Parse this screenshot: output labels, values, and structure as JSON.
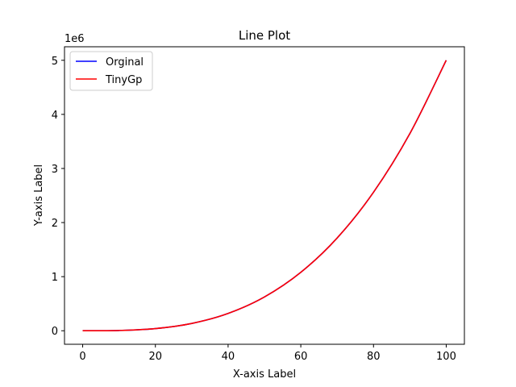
{
  "chart_data": {
    "type": "line",
    "title": "Line Plot",
    "xlabel": "X-axis Label",
    "ylabel": "Y-axis Label",
    "y_multiplier_label": "1e6",
    "xlim": [
      -5,
      105
    ],
    "ylim": [
      -0.25,
      5.25
    ],
    "x_ticks": [
      0,
      20,
      40,
      60,
      80,
      100
    ],
    "y_ticks": [
      0,
      1,
      2,
      3,
      4,
      5
    ],
    "grid": false,
    "legend_position": "top-left",
    "x": [
      0,
      10,
      20,
      30,
      40,
      50,
      60,
      70,
      80,
      90,
      100
    ],
    "series": [
      {
        "name": "Orginal",
        "color": "#0000ff",
        "values": [
          0,
          0.005,
          0.04,
          0.135,
          0.32,
          0.625,
          1.08,
          1.715,
          2.56,
          3.645,
          5.0
        ]
      },
      {
        "name": "TinyGp",
        "color": "#ff0000",
        "values": [
          0,
          0.005,
          0.04,
          0.135,
          0.32,
          0.625,
          1.08,
          1.715,
          2.56,
          3.645,
          5.0
        ]
      }
    ]
  }
}
